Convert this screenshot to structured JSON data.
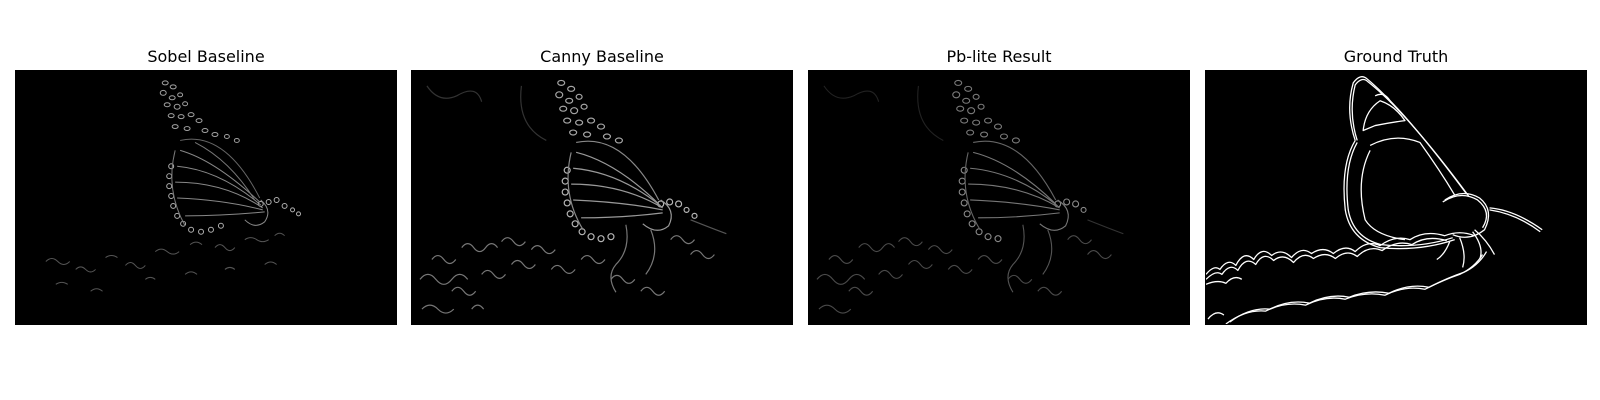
{
  "panels": [
    {
      "title": "Sobel Baseline"
    },
    {
      "title": "Canny Baseline"
    },
    {
      "title": "Pb-lite Result"
    },
    {
      "title": "Ground Truth"
    }
  ]
}
